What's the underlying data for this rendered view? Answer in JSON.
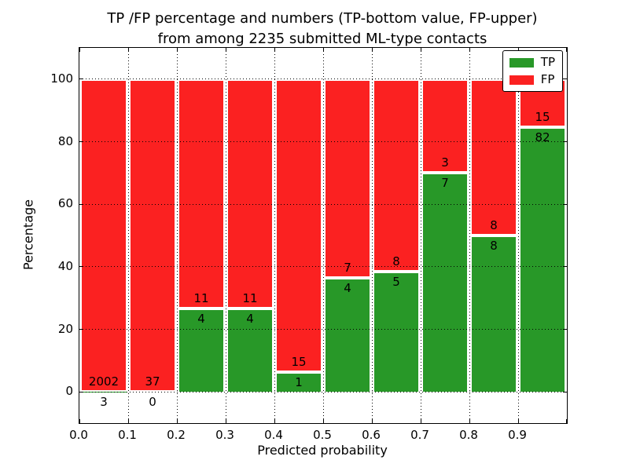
{
  "header": {
    "title_line1": "TP /FP percentage and numbers (TP-bottom value, FP-upper)",
    "title_line2": "from among 2235 submitted ML-type contacts"
  },
  "chart_data": {
    "type": "bar",
    "stacked": true,
    "normalized_to_percent": true,
    "title": "TP /FP percentage and numbers (TP-bottom value, FP-upper) from among 2235 submitted ML-type contacts",
    "xlabel": "Predicted probability",
    "ylabel": "Percentage",
    "xlim": [
      0.0,
      1.0
    ],
    "ylim": [
      -10,
      110
    ],
    "bin_width": 0.1,
    "grid": true,
    "x_ticks": [
      "0.0",
      "0.1",
      "0.2",
      "0.3",
      "0.4",
      "0.5",
      "0.6",
      "0.7",
      "0.8",
      "0.9"
    ],
    "y_ticks": [
      "0",
      "20",
      "40",
      "60",
      "80",
      "100"
    ],
    "categories": [
      "0.0-0.1",
      "0.1-0.2",
      "0.2-0.3",
      "0.3-0.4",
      "0.4-0.5",
      "0.5-0.6",
      "0.6-0.7",
      "0.7-0.8",
      "0.8-0.9",
      "0.9-1.0"
    ],
    "series": [
      {
        "name": "TP",
        "color": "#289828",
        "values": [
          3,
          0,
          4,
          4,
          1,
          4,
          5,
          7,
          8,
          82
        ]
      },
      {
        "name": "FP",
        "color": "#fb2121",
        "values": [
          2002,
          37,
          11,
          11,
          15,
          7,
          8,
          3,
          8,
          15
        ]
      }
    ],
    "tp_percent_of_bin": [
      0.15,
      0.0,
      26.67,
      26.67,
      6.25,
      36.36,
      38.46,
      70.0,
      50.0,
      84.54
    ],
    "total_contacts": 2235,
    "legend": {
      "position": "upper right",
      "entries": [
        {
          "label": "TP",
          "color": "#289828"
        },
        {
          "label": "FP",
          "color": "#fb2121"
        }
      ]
    }
  }
}
